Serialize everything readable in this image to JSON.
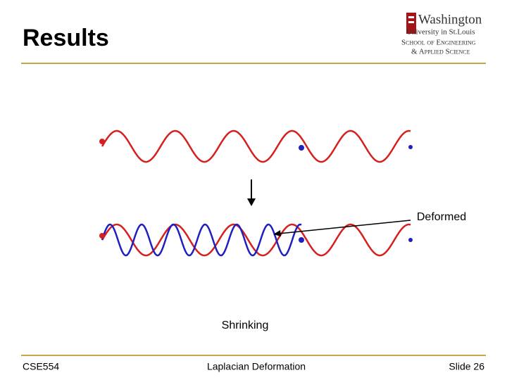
{
  "header": {
    "title": "Results"
  },
  "logo": {
    "line1": "Washington",
    "line2": "University in St.Louis",
    "line3": "School of Engineering",
    "line4": "& Applied Science"
  },
  "figure": {
    "callout": "Deformed",
    "caption": "Shrinking"
  },
  "footer": {
    "left": "CSE554",
    "center": "Laplacian Deformation",
    "right": "Slide 26"
  }
}
